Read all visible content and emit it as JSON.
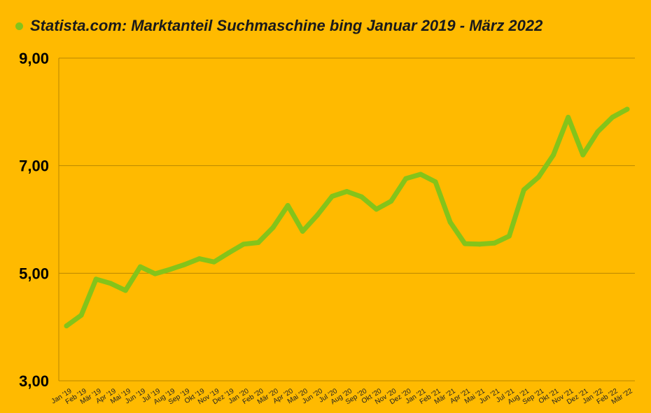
{
  "chart_data": {
    "type": "line",
    "legend_position": "top-left",
    "grid": true,
    "line_color": "#84C41A",
    "grid_color": "#B98700",
    "background_color": "#FFBA00",
    "ylim": [
      3,
      9
    ],
    "yticks": [
      "3,00",
      "5,00",
      "7,00",
      "9,00"
    ],
    "ytick_values": [
      3,
      5,
      7,
      9
    ],
    "categories": [
      "Jan '19",
      "Feb '19",
      "Mär '19",
      "Apr '19",
      "Mai '19",
      "Jun '19",
      "Jul '19",
      "Aug '19",
      "Sep '19",
      "Okt '19",
      "Nov '19",
      "Dez '19",
      "Jan '20",
      "Feb '20",
      "Mär '20",
      "Apr '20",
      "Mai '20",
      "Jun '20",
      "Jul '20",
      "Aug '20",
      "Sep '20",
      "Okt '20",
      "Nov '20",
      "Dez '20",
      "Jan '21",
      "Feb '21",
      "Mär '21",
      "Apr '21",
      "Mai '21",
      "Jun '21",
      "Jul '21",
      "Aug '21",
      "Sep '21",
      "Okt '21",
      "Nov '21",
      "Dez '21",
      "Jan '22",
      "Feb '22",
      "Mär '22"
    ],
    "series": [
      {
        "name": "Statista.com: Marktanteil Suchmaschine bing Januar 2019 - März 2022",
        "values": [
          4.02,
          4.22,
          4.89,
          4.81,
          4.68,
          5.12,
          4.99,
          5.07,
          5.16,
          5.27,
          5.21,
          5.38,
          5.54,
          5.57,
          5.85,
          6.26,
          5.78,
          6.08,
          6.43,
          6.52,
          6.42,
          6.19,
          6.34,
          6.76,
          6.84,
          6.7,
          5.95,
          5.55,
          5.54,
          5.56,
          5.69,
          6.55,
          6.79,
          7.2,
          7.9,
          7.2,
          7.63,
          7.9,
          8.05
        ]
      }
    ]
  }
}
